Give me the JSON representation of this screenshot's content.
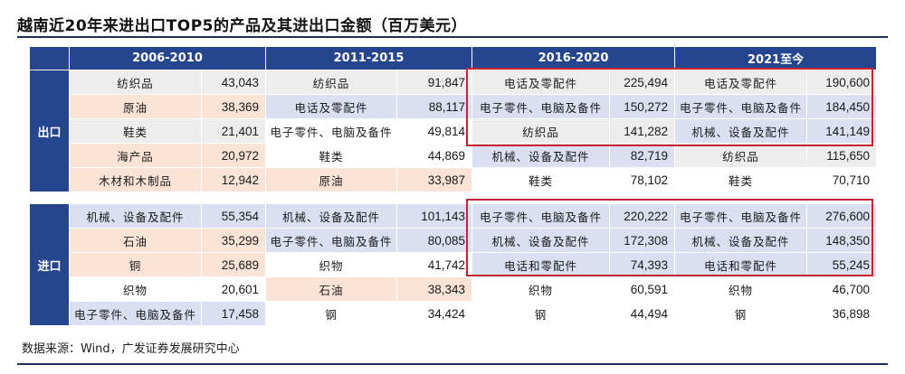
{
  "title": "越南近20年来进出口TOP5的产品及其进出口金额（百万美元）",
  "source": "数据来源：Wind，广发证券发展研究中心",
  "colors": {
    "header": "#25458f",
    "highlight_box": "#c8242f",
    "grey": "#ededee",
    "peach": "#fbe4d6",
    "blue": "#dadff1"
  },
  "periods": [
    "2006-2010",
    "2011-2015",
    "2016-2020",
    "2021至今"
  ],
  "export": {
    "label": "出口",
    "rows": [
      [
        [
          "纺织品",
          "43,043",
          "grey"
        ],
        [
          "纺织品",
          "91,847",
          "grey"
        ],
        [
          "电话及零配件",
          "225,494",
          "grey"
        ],
        [
          "电话及零配件",
          "190,600",
          "grey"
        ]
      ],
      [
        [
          "原油",
          "38,369",
          "peach"
        ],
        [
          "电话及零配件",
          "88,117",
          "blue"
        ],
        [
          "电子零件、电脑及备件",
          "150,272",
          "blue"
        ],
        [
          "电子零件、电脑及备件",
          "184,450",
          "blue"
        ]
      ],
      [
        [
          "鞋类",
          "21,401",
          "grey"
        ],
        [
          "电子零件、电脑及备件",
          "49,814",
          "white"
        ],
        [
          "纺织品",
          "141,282",
          "grey"
        ],
        [
          "机械、设备及配件",
          "141,149",
          "blue"
        ]
      ],
      [
        [
          "海产品",
          "20,972",
          "peach"
        ],
        [
          "鞋类",
          "44,869",
          "white"
        ],
        [
          "机械、设备及配件",
          "82,719",
          "blue"
        ],
        [
          "纺织品",
          "115,650",
          "grey"
        ]
      ],
      [
        [
          "木材和木制品",
          "12,942",
          "peach"
        ],
        [
          "原油",
          "33,987",
          "peach"
        ],
        [
          "鞋类",
          "78,102",
          "white"
        ],
        [
          "鞋类",
          "70,710",
          "white"
        ]
      ]
    ]
  },
  "import": {
    "label": "进口",
    "rows": [
      [
        [
          "机械、设备及配件",
          "55,354",
          "blue"
        ],
        [
          "机械、设备及配件",
          "101,143",
          "blue"
        ],
        [
          "电子零件、电脑及备件",
          "220,222",
          "blue"
        ],
        [
          "电子零件、电脑及备件",
          "276,600",
          "blue"
        ]
      ],
      [
        [
          "石油",
          "35,299",
          "peach"
        ],
        [
          "电子零件、电脑及备件",
          "80,085",
          "blue"
        ],
        [
          "机械、设备及配件",
          "172,308",
          "blue"
        ],
        [
          "机械、设备及配件",
          "148,350",
          "blue"
        ]
      ],
      [
        [
          "铜",
          "25,689",
          "peach"
        ],
        [
          "织物",
          "41,742",
          "white"
        ],
        [
          "电话和零配件",
          "74,393",
          "blue"
        ],
        [
          "电话和零配件",
          "55,245",
          "blue"
        ]
      ],
      [
        [
          "织物",
          "20,601",
          "white"
        ],
        [
          "石油",
          "38,343",
          "peach"
        ],
        [
          "织物",
          "60,591",
          "white"
        ],
        [
          "织物",
          "46,700",
          "white"
        ]
      ],
      [
        [
          "电子零件、电脑及备件",
          "17,458",
          "blue"
        ],
        [
          "钢",
          "34,424",
          "white"
        ],
        [
          "钢",
          "44,494",
          "white"
        ],
        [
          "钢",
          "36,898",
          "white"
        ]
      ]
    ]
  }
}
